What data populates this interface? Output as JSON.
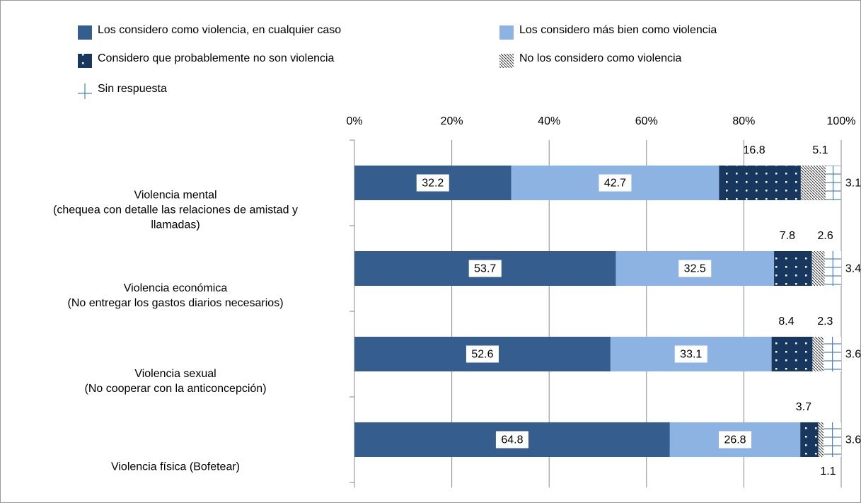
{
  "chart_data": {
    "type": "stacked-bar-horizontal",
    "categories": [
      "Violencia mental\n(chequea con detalle las relaciones de amistad y\nllamadas)",
      "Violencia económica\n(No entregar los gastos diarios necesarios)",
      "Violencia sexual\n(No cooperar con la anticoncepción)",
      "Violencia física (Bofetear)"
    ],
    "series": [
      {
        "name": "Los considero como violencia, en cualquier caso",
        "color": "#355e8e",
        "pattern": "solid",
        "values": [
          32.2,
          53.7,
          52.6,
          64.8
        ]
      },
      {
        "name": "Los considero más bien como violencia",
        "color": "#8db3e2",
        "pattern": "solid",
        "values": [
          42.7,
          32.5,
          33.1,
          26.8
        ]
      },
      {
        "name": "Considero que probablemente no son violencia",
        "color": "#17375e",
        "pattern": "dots",
        "values": [
          16.8,
          7.8,
          8.4,
          3.7
        ]
      },
      {
        "name": "No los considero como violencia",
        "color": "#333333",
        "pattern": "hatch",
        "values": [
          5.1,
          2.6,
          2.3,
          1.1
        ]
      },
      {
        "name": "Sin respuesta",
        "color": "#4a7ebb",
        "pattern": "cross",
        "values": [
          3.1,
          3.4,
          3.6,
          3.6
        ]
      }
    ],
    "xlim": [
      0,
      100
    ],
    "xticks": [
      {
        "value": 0,
        "label": "0%"
      },
      {
        "value": 20,
        "label": "20%"
      },
      {
        "value": 40,
        "label": "40%"
      },
      {
        "value": 60,
        "label": "60%"
      },
      {
        "value": 80,
        "label": "80%"
      },
      {
        "value": 100,
        "label": "100%"
      }
    ],
    "grid": true
  }
}
